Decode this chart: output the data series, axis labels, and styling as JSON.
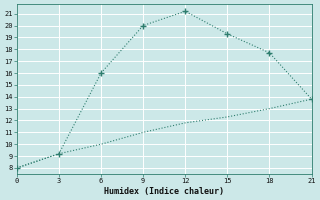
{
  "xlabel": "Humidex (Indice chaleur)",
  "x_line1": [
    0,
    3,
    6,
    9,
    12,
    15,
    18,
    21
  ],
  "y_line1": [
    8,
    9.2,
    16,
    20,
    21.2,
    19.3,
    17.7,
    13.8
  ],
  "x_line2": [
    0,
    3,
    6,
    9,
    12,
    15,
    18,
    21
  ],
  "y_line2": [
    8,
    9.2,
    10,
    11,
    11.8,
    12.3,
    13.0,
    13.8
  ],
  "line_color": "#2e7d6e",
  "bg_color": "#cce8e8",
  "grid_color": "#b0d4d4",
  "xlim": [
    0,
    21
  ],
  "ylim": [
    7.5,
    21.8
  ],
  "xticks": [
    0,
    3,
    6,
    9,
    12,
    15,
    18,
    21
  ],
  "yticks": [
    8,
    9,
    10,
    11,
    12,
    13,
    14,
    15,
    16,
    17,
    18,
    19,
    20,
    21
  ]
}
